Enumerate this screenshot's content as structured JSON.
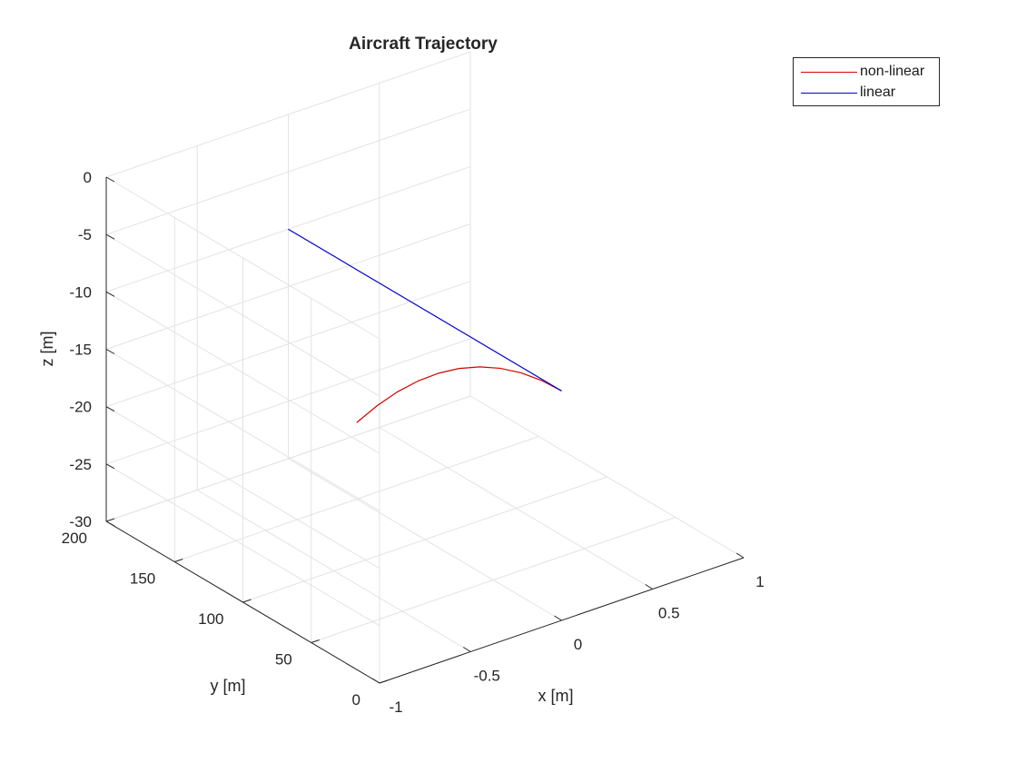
{
  "chart_data": {
    "type": "line",
    "projection": "3d",
    "title": "Aircraft Trajectory",
    "xlabel": "x [m]",
    "ylabel": "y [m]",
    "zlabel": "z [m]",
    "xlim": [
      -1,
      1
    ],
    "ylim": [
      0,
      200
    ],
    "zlim": [
      -30,
      0
    ],
    "xticks": [
      -1,
      -0.5,
      0,
      0.5,
      1
    ],
    "yticks": [
      0,
      50,
      100,
      150,
      200
    ],
    "zticks": [
      -30,
      -25,
      -20,
      -15,
      -10,
      -5,
      0
    ],
    "xtick_labels": [
      "-1",
      "-0.5",
      "0",
      "0.5",
      "1"
    ],
    "ytick_labels": [
      "0",
      "50",
      "100",
      "150",
      "200"
    ],
    "ztick_labels": [
      "-30",
      "-25",
      "-20",
      "-15",
      "-10",
      "-5",
      "0"
    ],
    "grid": true,
    "legend": {
      "placement": "top-right",
      "entries": [
        "non-linear",
        "linear"
      ]
    },
    "series": [
      {
        "name": "non-linear",
        "color": "#d40000",
        "x": [
          0,
          0,
          0,
          0,
          0,
          0,
          0,
          0,
          0,
          0,
          0
        ],
        "y": [
          0,
          15,
          30,
          45,
          60,
          75,
          90,
          105,
          120,
          135,
          150
        ],
        "z": [
          -10,
          -10.13,
          -10.53,
          -11.2,
          -12.13,
          -13.33,
          -14.8,
          -16.53,
          -18.53,
          -20.8,
          -23.33
        ]
      },
      {
        "name": "linear",
        "color": "#0000d4",
        "x": [
          0,
          0
        ],
        "y": [
          0,
          200
        ],
        "z": [
          -10,
          -10
        ]
      }
    ]
  }
}
